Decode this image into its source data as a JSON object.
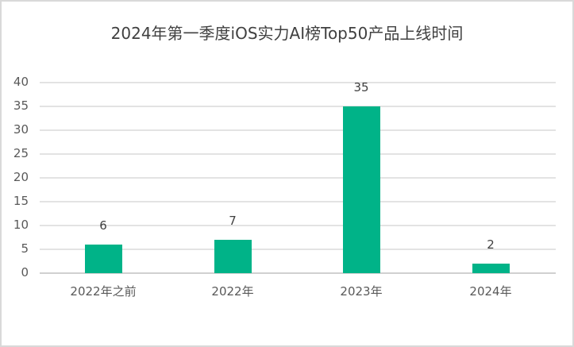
{
  "chart_data": {
    "type": "bar",
    "title": "2024年第一季度iOS实力AI榜Top50产品上线时间",
    "categories": [
      "2022年之前",
      "2022年",
      "2023年",
      "2024年"
    ],
    "values": [
      6,
      7,
      35,
      2
    ],
    "data_labels": [
      "6",
      "7",
      "35",
      "2"
    ],
    "xlabel": "",
    "ylabel": "",
    "ylim": [
      0,
      40
    ],
    "yticks": [
      "0",
      "5",
      "10",
      "15",
      "20",
      "25",
      "30",
      "35",
      "40"
    ],
    "grid": true,
    "legend": null,
    "bar_color": "#00b388"
  }
}
